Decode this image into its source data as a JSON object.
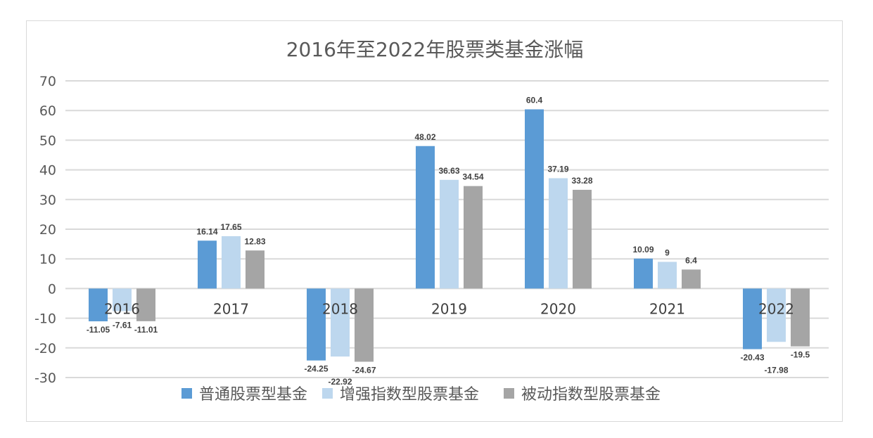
{
  "chart_data": {
    "type": "bar",
    "title": "2016年至2022年股票类基金涨幅",
    "xlabel": "",
    "ylabel": "",
    "categories": [
      "2016",
      "2017",
      "2018",
      "2019",
      "2020",
      "2021",
      "2022"
    ],
    "ylim": [
      -30,
      70
    ],
    "yticks": [
      70,
      60,
      50,
      40,
      30,
      20,
      10,
      0,
      -10,
      -20,
      -30
    ],
    "grid": true,
    "legend_position": "bottom",
    "series": [
      {
        "name": "普通股票型基金",
        "color": "#5b9bd5",
        "values": [
          -11.05,
          16.14,
          -24.25,
          48.02,
          60.4,
          10.09,
          -20.43
        ]
      },
      {
        "name": "增强指数型股票基金",
        "color": "#bdd7ee",
        "values": [
          -7.61,
          17.65,
          -22.92,
          36.63,
          37.19,
          9,
          -17.98
        ]
      },
      {
        "name": "被动指数型股票基金",
        "color": "#a5a5a5",
        "values": [
          -11.01,
          12.83,
          -24.67,
          34.54,
          33.28,
          6.4,
          -19.5
        ]
      }
    ]
  }
}
